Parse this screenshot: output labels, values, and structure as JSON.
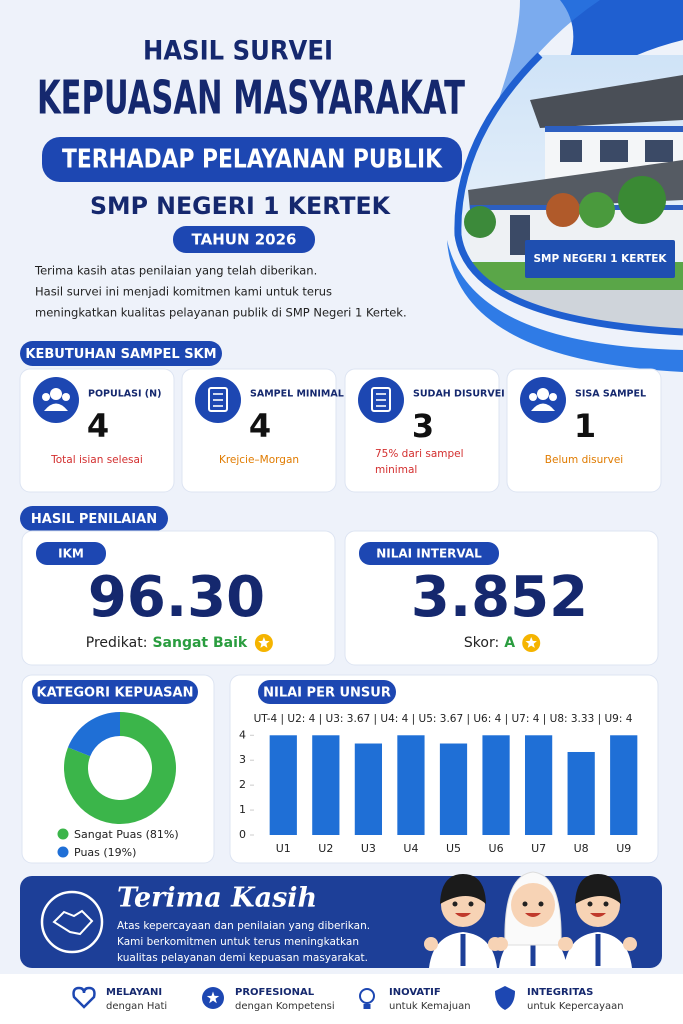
{
  "header": {
    "title_top": "HASIL SURVEI",
    "title_main": "KEPUASAN MASYARAKAT",
    "subtitle": "TERHADAP PELAYANAN PUBLIK",
    "school": "SMP NEGERI 1 KERTEK",
    "year": "TAHUN 2026",
    "intro": [
      "Terima kasih atas penilaian yang telah diberikan.",
      "Hasil survei ini menjadi komitmen kami untuk terus",
      "meningkatkan kualitas pelayanan publik di SMP Negeri 1 Kertek."
    ],
    "photo_sign": "SMP NEGERI 1 KERTEK"
  },
  "sampel": {
    "title": "KEBUTUHAN SAMPEL SKM",
    "cards": [
      {
        "label": "POPULASI (N)",
        "value": "4",
        "note": [
          "Total isian selesai"
        ],
        "note_color": "#d32f2f"
      },
      {
        "label": "SAMPEL MINIMAL (s)",
        "value": "4",
        "note": [
          "Krejcie–Morgan"
        ],
        "note_color": "#e07b00"
      },
      {
        "label": "SUDAH DISURVEI",
        "value": "3",
        "note": [
          "75% dari sampel",
          "minimal"
        ],
        "note_color": "#d32f2f"
      },
      {
        "label": "SISA SAMPEL",
        "value": "1",
        "note": [
          "Belum disurvei"
        ],
        "note_color": "#e07b00"
      }
    ]
  },
  "penilaian": {
    "title": "HASIL PENILAIAN",
    "ikm": {
      "label": "IKM",
      "value": "96.30",
      "predikat_label": "Predikat:",
      "predikat": "Sangat Baik"
    },
    "interval": {
      "label": "NILAI INTERVAL",
      "value": "3.852",
      "skor_label": "Skor:",
      "skor": "A"
    }
  },
  "kategori": {
    "title": "KATEGORI KEPUASAN",
    "chart": {
      "type": "donut",
      "labels": [
        "Sangat Puas (81%)",
        "Puas (19%)"
      ],
      "values": [
        81,
        19
      ],
      "colors": [
        "#3bb54a",
        "#1f6fd6"
      ]
    }
  },
  "unsur": {
    "title": "NILAI PER UNSUR",
    "summary": "UT-4 | U2: 4 | U3: 3.67 | U4: 4 | U5: 3.67 | U6: 4 | U7: 4 | U8: 3.33 | U9: 4",
    "chart": {
      "type": "bar",
      "categories": [
        "U1",
        "U2",
        "U3",
        "U4",
        "U5",
        "U6",
        "U7",
        "U8",
        "U9"
      ],
      "values": [
        4,
        4,
        3.67,
        4,
        3.67,
        4,
        4,
        3.33,
        4
      ],
      "color": "#1f6fd6",
      "ylim": [
        0,
        4.2
      ],
      "yticks": [
        0,
        1,
        2,
        3,
        4
      ]
    }
  },
  "thanks": {
    "title": "Terima Kasih",
    "lines": [
      "Atas kepercayaan dan penilaian yang diberikan.",
      "Kami berkomitmen untuk terus meningkatkan",
      "kualitas pelayanan demi kepuasan masyarakat."
    ]
  },
  "values": [
    {
      "title": "MELAYANI",
      "subtitle": "dengan Hati"
    },
    {
      "title": "PROFESIONAL",
      "subtitle": "dengan Kompetensi"
    },
    {
      "title": "INOVATIF",
      "subtitle": "untuk Kemajuan"
    },
    {
      "title": "INTEGRITAS",
      "subtitle": "untuk Kepercayaan"
    }
  ]
}
